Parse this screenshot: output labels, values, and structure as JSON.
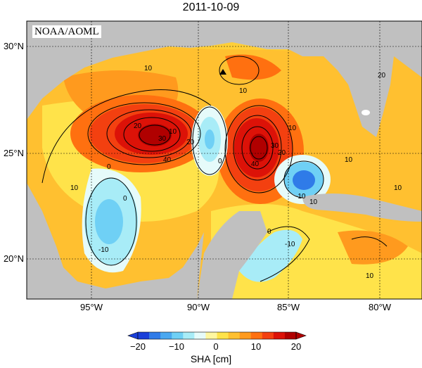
{
  "title": "2011-10-09",
  "credit": "NOAA/AOML",
  "lat_labels": [
    "30°N",
    "25°N",
    "20°N"
  ],
  "lon_labels": [
    "95°W",
    "90°W",
    "85°W",
    "80°W"
  ],
  "contour_labels": [
    "10",
    "10",
    "10",
    "10",
    "10",
    "10",
    "10",
    "10",
    "10",
    "20",
    "20",
    "30",
    "40",
    "40",
    "20",
    "30",
    "0",
    "0",
    "0",
    "0",
    "-10",
    "-10",
    "-10",
    "20"
  ],
  "colorbar": {
    "label": "SHA [cm]",
    "ticks": [
      "−20",
      "−10",
      "0",
      "10",
      "20"
    ],
    "colors": [
      "#1a3fd9",
      "#2f7be8",
      "#4aa8f0",
      "#6fd0f5",
      "#a8ecf7",
      "#e6fbfa",
      "#fff7a0",
      "#ffe34a",
      "#ffc030",
      "#ff9a1e",
      "#ff7010",
      "#f34010",
      "#dc1208",
      "#b00000"
    ]
  },
  "colors": {
    "land": "#c0c0c0",
    "ocean_bg": "#ffcf38"
  }
}
